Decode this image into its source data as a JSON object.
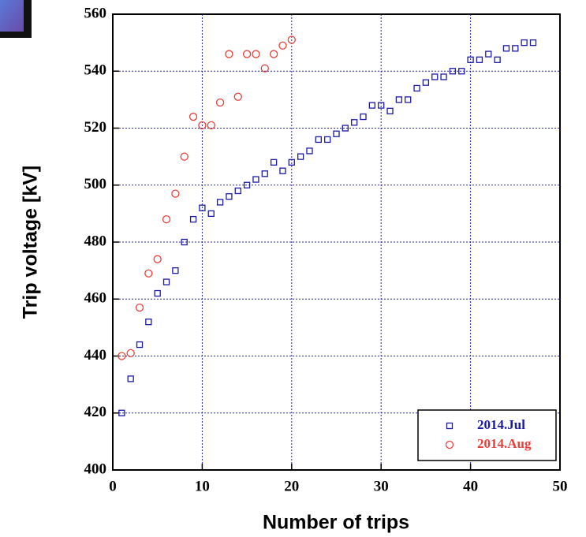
{
  "chart_data": {
    "type": "scatter",
    "xlabel": "Number of trips",
    "ylabel": "Trip voltage [kV]",
    "xlim": [
      0,
      50
    ],
    "xticks": [
      0,
      10,
      20,
      30,
      40,
      50
    ],
    "ylim": [
      400,
      560
    ],
    "yticks": [
      400,
      420,
      440,
      460,
      480,
      500,
      520,
      540,
      560
    ],
    "grid": true,
    "legend": "lower right",
    "series": [
      {
        "name": "2014.Jul",
        "color": "#1a1aa6",
        "marker": "square",
        "x": [
          1,
          2,
          3,
          4,
          5,
          6,
          7,
          8,
          9,
          10,
          11,
          12,
          13,
          14,
          15,
          16,
          17,
          18,
          19,
          20,
          21,
          22,
          23,
          24,
          25,
          26,
          27,
          28,
          29,
          30,
          31,
          32,
          33,
          34,
          35,
          36,
          37,
          38,
          39,
          40,
          41,
          42,
          43,
          44,
          45,
          46,
          47
        ],
        "values": [
          420,
          432,
          444,
          452,
          462,
          466,
          470,
          480,
          488,
          492,
          490,
          494,
          496,
          498,
          500,
          502,
          504,
          508,
          505,
          508,
          510,
          512,
          516,
          516,
          518,
          520,
          522,
          524,
          528,
          528,
          526,
          530,
          530,
          534,
          536,
          538,
          538,
          540,
          540,
          544,
          544,
          546,
          544,
          548,
          548,
          550,
          550
        ]
      },
      {
        "name": "2014.Aug",
        "color": "#e8403a",
        "marker": "circle",
        "x": [
          1,
          2,
          3,
          4,
          5,
          6,
          7,
          8,
          9,
          10,
          11,
          12,
          13,
          14,
          15,
          16,
          17,
          18,
          19,
          20
        ],
        "values": [
          440,
          441,
          457,
          469,
          474,
          488,
          497,
          510,
          524,
          521,
          521,
          529,
          546,
          531,
          546,
          546,
          541,
          546,
          549,
          551
        ]
      }
    ]
  }
}
